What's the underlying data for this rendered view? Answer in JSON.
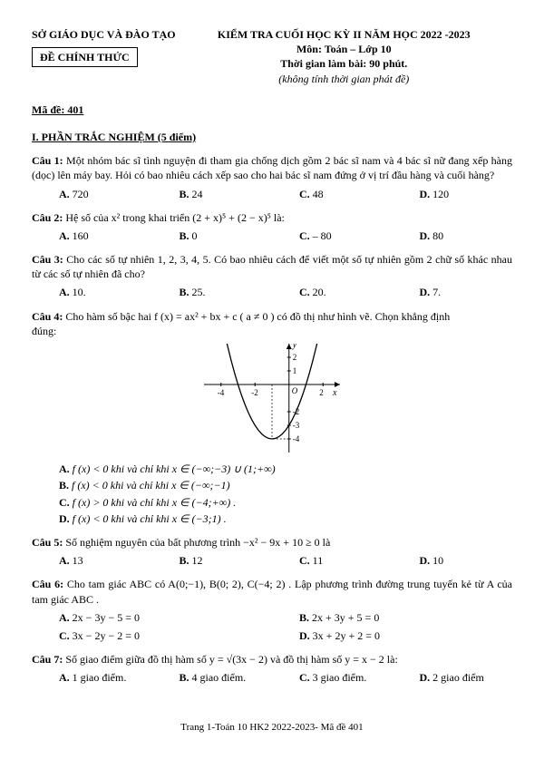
{
  "header": {
    "left_line1": "SỞ GIÁO DỤC VÀ ĐÀO TẠO",
    "official": "ĐỀ CHÍNH THỨC",
    "right_line1": "KIỂM TRA CUỐI HỌC KỲ II NĂM HỌC 2022 -2023",
    "right_line2": "Môn: Toán – Lớp 10",
    "right_line3": "Thời gian làm bài: 90 phút.",
    "right_line4": "(không tính thời gian phát đề)"
  },
  "made": "Mã đề: 401",
  "section1": "I. PHẦN TRẮC NGHIỆM (5 điểm)",
  "q1": {
    "label": "Câu 1:",
    "text": "Một nhóm bác sĩ tình nguyện đi tham gia chống dịch gồm 2 bác sĩ nam và 4 bác sĩ nữ đang xếp hàng (dọc) lên máy bay. Hỏi có bao nhiêu cách xếp sao cho hai bác sĩ nam đứng ở vị trí đầu hàng và cuối hàng?",
    "A": "720",
    "B": "24",
    "C": "48",
    "D": "120"
  },
  "q2": {
    "label": "Câu 2:",
    "text": "Hệ số của  x²  trong khai triển (2 + x)⁵ + (2 − x)⁵ là:",
    "A": "160",
    "B": "0",
    "C": "– 80",
    "D": "80"
  },
  "q3": {
    "label": "Câu 3:",
    "text": "Cho các số tự nhiên 1, 2, 3, 4, 5. Có bao nhiêu cách để viết một số tự nhiên gồm 2 chữ số khác nhau từ các số tự nhiên đã cho?",
    "A": "10.",
    "B": "25.",
    "C": "20.",
    "D": "7."
  },
  "q4": {
    "label": "Câu 4:",
    "text_pre": "Cho hàm số bậc hai  f (x) = ax² + bx + c ( a ≠ 0 )  có đồ thị như hình vẽ. Chọn khẳng định ",
    "text_post": "đúng:",
    "A": "f (x) < 0  khi và chỉ khi x ∈ (−∞;−3) ∪ (1;+∞)",
    "B": "f (x) < 0  khi và chỉ khi  x ∈ (−∞;−1)",
    "C": "f (x) > 0  khi và chỉ khi x ∈ (−4;+∞) .",
    "D": "f (x) < 0  khi và chỉ khi  x ∈ (−3;1) ."
  },
  "q5": {
    "label": "Câu 5:",
    "text": "Số nghiệm nguyên của bất phương trình  −x² − 9x + 10 ≥ 0  là",
    "A": "13",
    "B": "12",
    "C": "11",
    "D": "10"
  },
  "q6": {
    "label": "Câu 6:",
    "text": "Cho tam giác  ABC  có  A(0;−1),  B(0; 2),  C(−4; 2) . Lập phương trình đường trung tuyến kẻ từ  A  của tam giác  ABC .",
    "A": "2x − 3y − 5 = 0",
    "B": "2x + 3y + 5 = 0",
    "C": "3x − 2y − 2 = 0",
    "D": "3x + 2y + 2 = 0"
  },
  "q7": {
    "label": "Câu 7:",
    "text": "Số giao điểm giữa đồ thị hàm số  y = √(3x − 2)  và đồ thị hàm số  y = x − 2  là:",
    "A": "1 giao điểm.",
    "B": "4 giao điểm.",
    "C": "3 giao điểm.",
    "D": "2 giao điểm"
  },
  "footer": "Trang 1-Toán 10 HK2 2022-2023- Mã đề 401",
  "graph": {
    "width": 150,
    "height": 120,
    "xmin": -5,
    "xmax": 3,
    "ymin": -5,
    "ymax": 3,
    "xticks": [
      -4,
      -2,
      0,
      2
    ],
    "yticks": [
      -4,
      -3,
      -2,
      1,
      2
    ],
    "axis_color": "#000",
    "curve_color": "#000",
    "ylabel": "y",
    "xlabel": "x",
    "parabola": {
      "a": 1,
      "b": 2,
      "c": -3,
      "x_from": -4.2,
      "x_to": 2.2,
      "step": 0.2
    }
  }
}
